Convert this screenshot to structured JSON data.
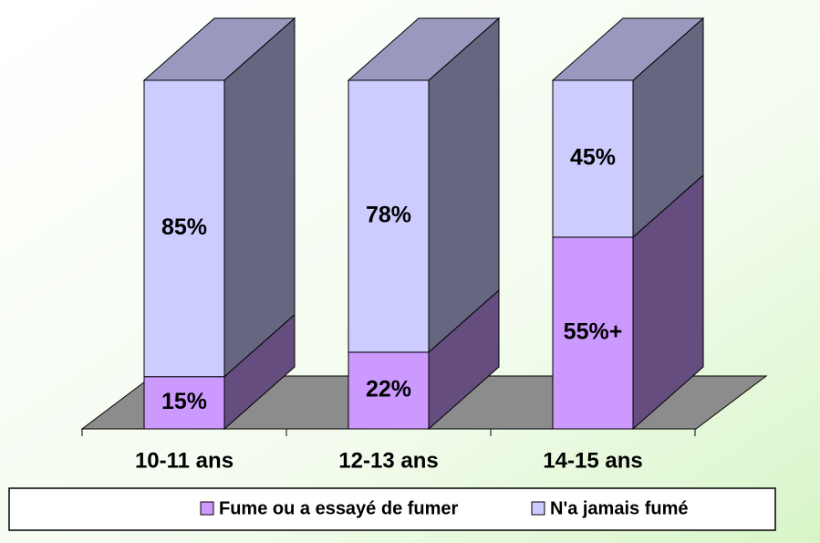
{
  "chart_data": {
    "type": "bar3d_stacked",
    "categories": [
      "10-11 ans",
      "12-13 ans",
      "14-15 ans"
    ],
    "series": [
      {
        "name": "Fume ou a essayé de fumer",
        "color": "#cc99ff",
        "values": [
          15,
          22,
          55
        ],
        "value_labels": [
          "15%",
          "22%",
          "55%+"
        ]
      },
      {
        "name": "N'a jamais fumé",
        "color": "#ccccff",
        "values": [
          85,
          78,
          45
        ],
        "value_labels": [
          "85%",
          "78%",
          "45%"
        ]
      }
    ],
    "ylim": [
      0,
      100
    ],
    "legend": "bottom"
  }
}
